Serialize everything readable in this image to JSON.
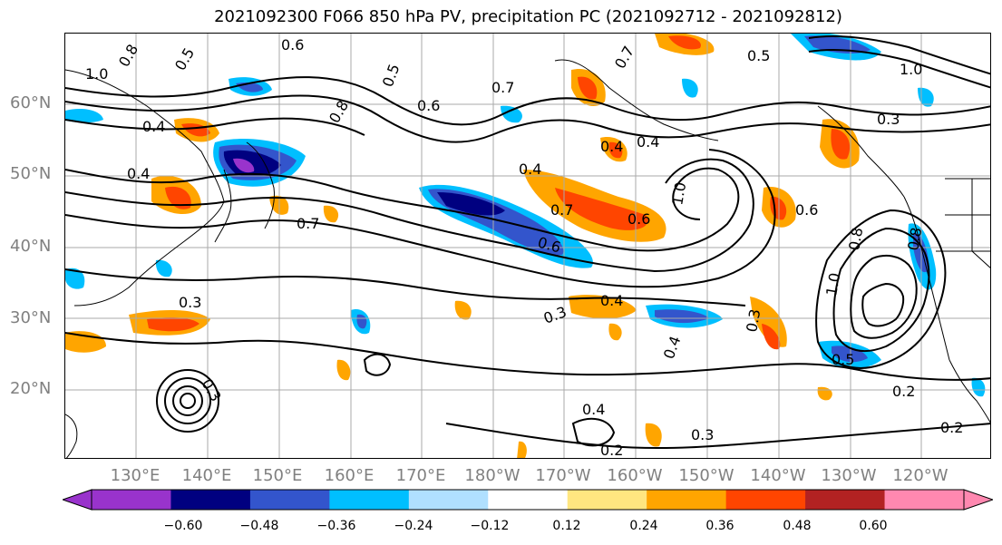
{
  "title": "2021092300 F066 850 hPa PV, precipitation PC (2021092712 - 2021092812)",
  "map": {
    "lat_ticks": [
      "60°N",
      "50°N",
      "40°N",
      "30°N",
      "20°N"
    ],
    "lon_ticks": [
      "130°E",
      "140°E",
      "150°E",
      "160°E",
      "170°E",
      "180°W",
      "170°W",
      "160°W",
      "150°W",
      "140°W",
      "130°W",
      "120°W"
    ],
    "contour_labels": [
      "0.6",
      "0.5",
      "1.0",
      "0.8",
      "0.7",
      "0.5",
      "0.4",
      "0.4",
      "0.6",
      "0.7",
      "0.8",
      "0.4",
      "0.7",
      "0.6",
      "1.0",
      "0.4",
      "0.7",
      "0.6",
      "0.4",
      "0.3",
      "0.3",
      "0.4",
      "0.3",
      "0.4",
      "0.3",
      "0.2",
      "0.2",
      "0.3",
      "0.6",
      "0.8",
      "1.0",
      "0.5",
      "0.4",
      "0.2",
      "0.3",
      "1.0",
      "0.8",
      "0.5"
    ],
    "grid": true
  },
  "colorbar": {
    "colors": [
      "#9933cc",
      "#000080",
      "#3355cc",
      "#00bfff",
      "#b0e0ff",
      "#ffffff",
      "#ffe680",
      "#ffa500",
      "#ff4500",
      "#b22222",
      "#ff88b0"
    ],
    "extend_low_color": "#9933cc",
    "extend_high_color": "#ff88b0",
    "tick_labels": [
      "−0.60",
      "−0.48",
      "−0.36",
      "−0.24",
      "−0.12",
      "0.12",
      "0.24",
      "0.36",
      "0.48",
      "0.60"
    ]
  }
}
